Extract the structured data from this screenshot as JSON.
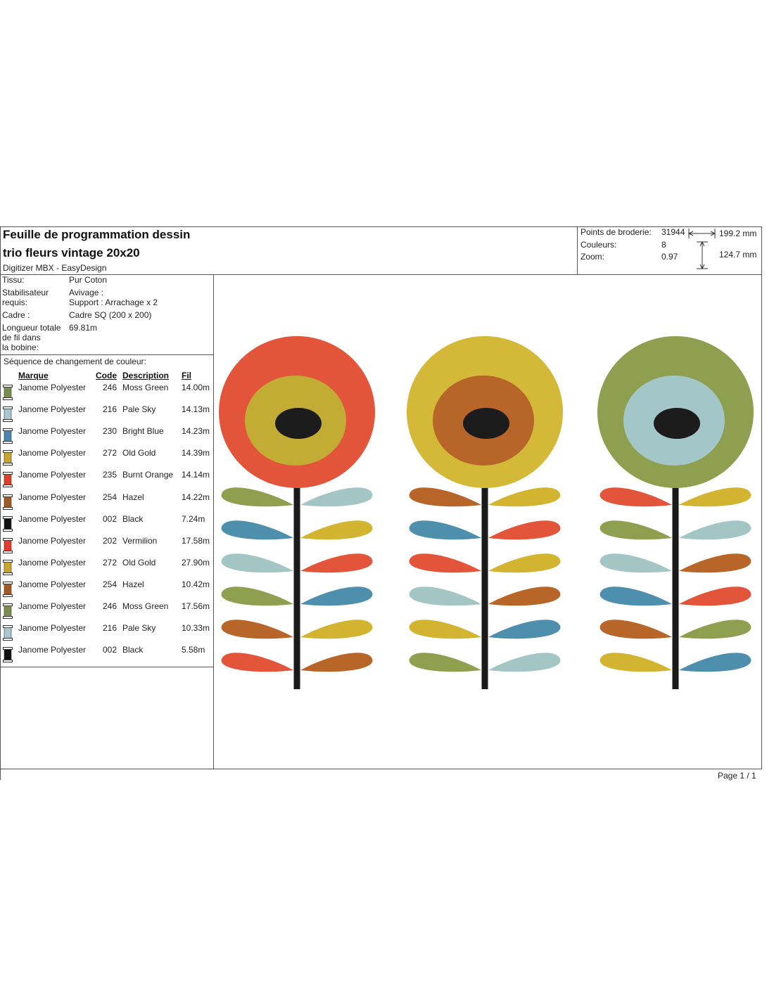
{
  "header": {
    "title_line1": "Feuille de programmation dessin",
    "title_line2": "trio fleurs vintage 20x20",
    "software": "Digitizer MBX - EasyDesign"
  },
  "stats": {
    "stitches_label": "Points de broderie:",
    "stitches_value": "31944",
    "colors_label": "Couleurs:",
    "colors_value": "8",
    "zoom_label": "Zoom:",
    "zoom_value": "0.97",
    "width": "199.2 mm",
    "height": "124.7 mm"
  },
  "info": {
    "fabric_label": "Tissu:",
    "fabric_value": "Pur Coton",
    "stabilizer_label_1": "Stabilisateur",
    "stabilizer_label_2": "requis:",
    "stabilizer_value_1": "Avivage :",
    "stabilizer_value_2": "Support : Arrachage x 2",
    "frame_label": "Cadre :",
    "frame_value": "Cadre SQ (200 x 200)",
    "thread_label_1": "Longueur totale",
    "thread_label_2": "de fil dans",
    "thread_label_3": "la bobine:",
    "thread_value": "69.81m"
  },
  "sequence": {
    "title": "Séquence de changement de couleur:",
    "headers": {
      "brand": "Marque",
      "code": "Code",
      "description": "Description",
      "length": "Fil"
    },
    "rows": [
      {
        "brand": "Janome Polyester",
        "code": "246",
        "description": "Moss Green",
        "length": "14.00m",
        "color": "#7a8f4f"
      },
      {
        "brand": "Janome Polyester",
        "code": "216",
        "description": "Pale Sky",
        "length": "14.13m",
        "color": "#a8c6cf"
      },
      {
        "brand": "Janome Polyester",
        "code": "230",
        "description": "Bright Blue",
        "length": "14.23m",
        "color": "#4a86ad"
      },
      {
        "brand": "Janome Polyester",
        "code": "272",
        "description": "Old Gold",
        "length": "14.39m",
        "color": "#c9a52a"
      },
      {
        "brand": "Janome Polyester",
        "code": "235",
        "description": "Burnt Orange",
        "length": "14.14m",
        "color": "#e0402a"
      },
      {
        "brand": "Janome Polyester",
        "code": "254",
        "description": "Hazel",
        "length": "14.22m",
        "color": "#a35a22"
      },
      {
        "brand": "Janome Polyester",
        "code": "002",
        "description": "Black",
        "length": "7.24m",
        "color": "#111111"
      },
      {
        "brand": "Janome Polyester",
        "code": "202",
        "description": "Vermilion",
        "length": "17.58m",
        "color": "#e23a2c"
      },
      {
        "brand": "Janome Polyester",
        "code": "272",
        "description": "Old Gold",
        "length": "27.90m",
        "color": "#c9a52a"
      },
      {
        "brand": "Janome Polyester",
        "code": "254",
        "description": "Hazel",
        "length": "10.42m",
        "color": "#a35a22"
      },
      {
        "brand": "Janome Polyester",
        "code": "246",
        "description": "Moss Green",
        "length": "17.56m",
        "color": "#7a8f4f"
      },
      {
        "brand": "Janome Polyester",
        "code": "216",
        "description": "Pale Sky",
        "length": "10.33m",
        "color": "#a8c6cf"
      },
      {
        "brand": "Janome Polyester",
        "code": "002",
        "description": "Black",
        "length": "5.58m",
        "color": "#111111"
      }
    ]
  },
  "footer": {
    "page": "Page 1 / 1"
  },
  "design": {
    "flowers": [
      {
        "outer": "#e2553a",
        "middle": "#c3ac34",
        "center": "#1c1c1c",
        "leaves_left": [
          "#8ea050",
          "#4f8fae",
          "#a3c6c4",
          "#8ea050",
          "#b8652a",
          "#e2553a"
        ],
        "leaves_right": [
          "#a3c6c4",
          "#d2b430",
          "#e2553a",
          "#4f8fae",
          "#d2b430",
          "#b8652a"
        ]
      },
      {
        "outer": "#d4b838",
        "middle": "#b8652a",
        "center": "#1c1c1c",
        "leaves_left": [
          "#b8652a",
          "#4f8fae",
          "#e2553a",
          "#a3c6c4",
          "#d2b430",
          "#8ea050"
        ],
        "leaves_right": [
          "#d2b430",
          "#e2553a",
          "#d2b430",
          "#b8652a",
          "#4f8fae",
          "#a3c6c4"
        ]
      },
      {
        "outer": "#8ea050",
        "middle": "#a3c6c8",
        "center": "#1c1c1c",
        "leaves_left": [
          "#e2553a",
          "#8ea050",
          "#a3c6c4",
          "#4f8fae",
          "#b8652a",
          "#d2b430"
        ],
        "leaves_right": [
          "#d2b430",
          "#a3c6c4",
          "#b8652a",
          "#e2553a",
          "#8ea050",
          "#4f8fae"
        ]
      }
    ]
  }
}
